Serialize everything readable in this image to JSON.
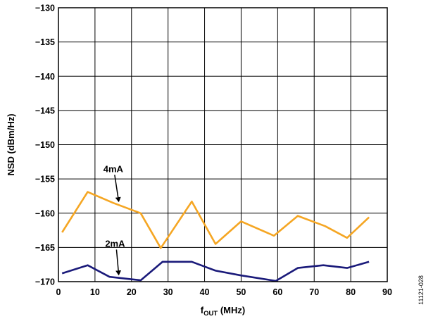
{
  "chart_data": {
    "type": "line",
    "xlabel": "f",
    "xlabel_sub": "OUT",
    "xlabel_unit": " (MHz)",
    "ylabel": "NSD (dBm/Hz)",
    "xlim": [
      0,
      90
    ],
    "ylim": [
      -170,
      -130
    ],
    "xticks": [
      0,
      10,
      20,
      30,
      40,
      50,
      60,
      70,
      80,
      90
    ],
    "yticks": [
      -130,
      -135,
      -140,
      -145,
      -150,
      -155,
      -160,
      -165,
      -170
    ],
    "xtick_labels": [
      "0",
      "10",
      "20",
      "30",
      "40",
      "50",
      "60",
      "70",
      "80",
      "90"
    ],
    "ytick_labels": [
      "−130",
      "−135",
      "−140",
      "−145",
      "−150",
      "−155",
      "−160",
      "−165",
      "−170"
    ],
    "grid": true,
    "series": [
      {
        "name": "4mA",
        "color": "#f5a623",
        "x": [
          1,
          8,
          15,
          22.5,
          28,
          36.5,
          43,
          50,
          59,
          65.5,
          73,
          79,
          85
        ],
        "y": [
          -162.8,
          -156.9,
          -158.5,
          -160.0,
          -165.1,
          -158.3,
          -164.5,
          -161.2,
          -163.3,
          -160.4,
          -161.9,
          -163.6,
          -160.6
        ]
      },
      {
        "name": "2mA",
        "color": "#1a1a7a",
        "x": [
          1,
          8,
          14,
          22.5,
          28.5,
          36.5,
          43,
          50,
          59.5,
          65.5,
          72.5,
          79,
          85
        ],
        "y": [
          -168.8,
          -167.6,
          -169.3,
          -169.8,
          -167.1,
          -167.1,
          -168.4,
          -169.1,
          -169.9,
          -168.0,
          -167.6,
          -168.0,
          -167.1
        ]
      }
    ],
    "annotations": [
      {
        "text": "4mA",
        "series": 0,
        "text_x": 15,
        "text_y": -154,
        "arrow_to_x": 16.5,
        "arrow_to_y": -158.6
      },
      {
        "text": "2mA",
        "series": 1,
        "text_x": 15.5,
        "text_y": -164.9,
        "arrow_to_x": 16.5,
        "arrow_to_y": -169.3
      }
    ],
    "figure_id": "11121-028"
  }
}
